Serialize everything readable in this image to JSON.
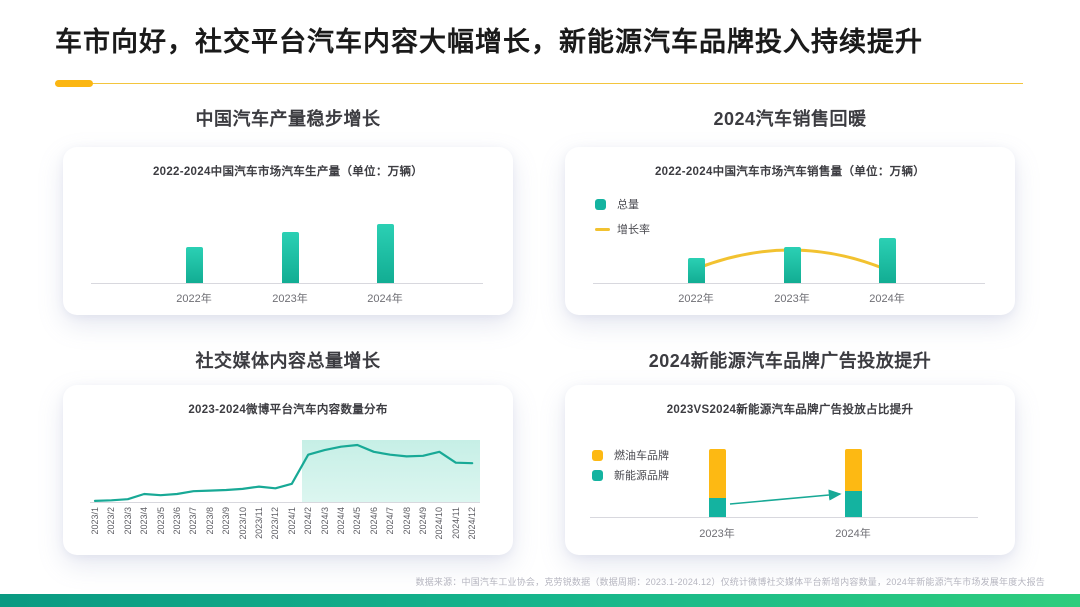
{
  "page": {
    "title": "车市向好，社交平台汽车内容大幅增长，新能源汽车品牌投入持续提升",
    "footer": "数据来源：中国汽车工业协会，克劳锐数据（数据周期：2023.1-2024.12）仅统计微博社交媒体平台新增内容数量，2024年新能源汽车市场发展年度大报告"
  },
  "colors": {
    "teal_bar_top": "#2bd0b4",
    "teal_bar_bottom": "#12ad93",
    "teal_solid": "#14b3a0",
    "teal_line": "#18a996",
    "yellow": "#fdb913",
    "yellow_line": "#f2c230",
    "underline_yellow": "#fbb612",
    "highlight_fill_top": "#c6efe6",
    "highlight_fill_bottom": "#dcf6f0",
    "bottom_bar_left": "#0a9a82",
    "bottom_bar_mid": "#16b58c",
    "bottom_bar_right": "#2ecd7d"
  },
  "sections": {
    "production": {
      "title": "中国汽车产量稳步增长",
      "chart_title": "2022-2024中国汽车市场汽车生产量（单位：万辆）"
    },
    "sales": {
      "title": "2024汽车销售回暖",
      "chart_title": "2022-2024中国汽车市场汽车销售量（单位：万辆）",
      "legend": [
        {
          "label": "总量",
          "swatch": "teal-square"
        },
        {
          "label": "增长率",
          "swatch": "yellow-line"
        }
      ]
    },
    "social": {
      "title": "社交媒体内容总量增长",
      "chart_title": "2023-2024微博平台汽车内容数量分布"
    },
    "ads": {
      "title": "2024新能源汽车品牌广告投放提升",
      "chart_title": "2023VS2024新能源汽车品牌广告投放占比提升",
      "legend": [
        {
          "label": "燃油车品牌",
          "swatch": "yellow-square"
        },
        {
          "label": "新能源品牌",
          "swatch": "teal-square"
        }
      ]
    }
  },
  "chart_data": [
    {
      "id": "production",
      "type": "bar",
      "title": "2022-2024中国汽车市场汽车生产量（单位：万辆）",
      "categories": [
        "2022年",
        "2023年",
        "2024年"
      ],
      "values_relative": [
        61,
        86,
        100
      ],
      "ylabel": "",
      "note": "no numeric axis or data labels shown; values are bar heights as % of tallest bar"
    },
    {
      "id": "sales",
      "type": "bar+line",
      "title": "2022-2024中国汽车市场汽车销售量（单位：万辆）",
      "categories": [
        "2022年",
        "2023年",
        "2024年"
      ],
      "series": [
        {
          "name": "总量",
          "type": "bar",
          "values_relative": [
            56,
            80,
            100
          ]
        },
        {
          "name": "增长率",
          "type": "line",
          "values_relative": [
            25,
            58,
            23
          ]
        }
      ],
      "legend_position": "upper-left",
      "note": "no numeric axis shown; growth-rate curve rises from 2022, peaks near 2023, falls to 2024"
    },
    {
      "id": "social",
      "type": "area",
      "title": "2023-2024微博平台汽车内容数量分布",
      "categories": [
        "2023/1",
        "2023/2",
        "2023/3",
        "2023/4",
        "2023/5",
        "2023/6",
        "2023/7",
        "2023/8",
        "2023/9",
        "2023/10",
        "2023/11",
        "2023/12",
        "2024/1",
        "2024/2",
        "2024/3",
        "2024/4",
        "2024/5",
        "2024/6",
        "2024/7",
        "2024/8",
        "2024/9",
        "2024/10",
        "2024/11",
        "2024/12"
      ],
      "values_relative": [
        2,
        3,
        5,
        14,
        12,
        14,
        19,
        20,
        21,
        23,
        27,
        24,
        32,
        83,
        91,
        97,
        100,
        88,
        83,
        80,
        81,
        88,
        69,
        68
      ],
      "highlight_range": [
        "2024/2",
        "2024/12"
      ],
      "note": "no numeric axis shown; values are % of peak (2024/5); shaded band highlights 2024/2 onward"
    },
    {
      "id": "ads",
      "type": "stacked-bar",
      "title": "2023VS2024新能源汽车品牌广告投放占比提升",
      "categories": [
        "2023年",
        "2024年"
      ],
      "series": [
        {
          "name": "新能源品牌",
          "values_percent": [
            28,
            38
          ]
        },
        {
          "name": "燃油车品牌",
          "values_percent": [
            72,
            62
          ]
        }
      ],
      "annotation": "teal arrow from 2023 新能源 share boundary up to 2024 新能源 share boundary",
      "note": "both bars same total height (100%)"
    }
  ]
}
